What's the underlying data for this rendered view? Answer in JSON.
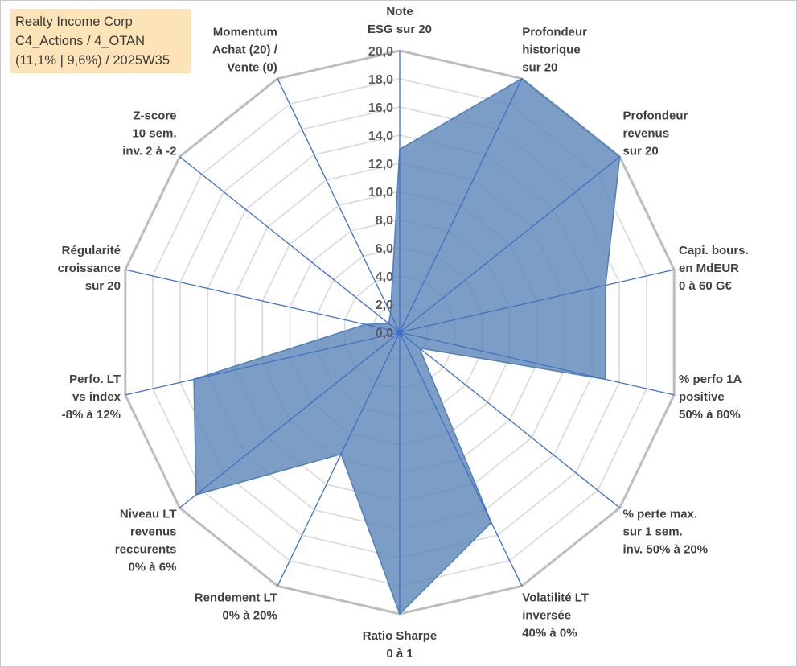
{
  "title": {
    "lines": [
      "Realty Income Corp",
      "C4_Actions / 4_OTAN",
      "(11,1% | 9,6%) / 2025W35"
    ]
  },
  "colors": {
    "fill": "#5b86b8",
    "fill_opacity": 0.8,
    "series_line": "#4f7fb8",
    "spokes": "#3f6fc4",
    "outer_ring": "#bdbdbd",
    "inner_ring": "#d9d9d9",
    "title_bg": "#fde4b8"
  },
  "chart_data": {
    "type": "radar",
    "axes": [
      {
        "lines": [
          "Note",
          "ESG sur 20"
        ],
        "value": 13.0
      },
      {
        "lines": [
          "Profondeur",
          "historique",
          "sur 20"
        ],
        "value": 20.0
      },
      {
        "lines": [
          "Profondeur",
          "revenus",
          "sur 20"
        ],
        "value": 20.0
      },
      {
        "lines": [
          "Capi. bours.",
          "en MdEUR",
          "0 à 60 G€"
        ],
        "value": 15.0
      },
      {
        "lines": [
          "% perfo 1A",
          "positive",
          "50% à 80%"
        ],
        "value": 15.0
      },
      {
        "lines": [
          "% perte max.",
          "sur 1 sem.",
          "inv. 50% à 20%"
        ],
        "value": 1.8
      },
      {
        "lines": [
          "Volatilité LT",
          "inversée",
          "40% à 0%"
        ],
        "value": 15.0
      },
      {
        "lines": [
          "Ratio Sharpe",
          "0 à 1"
        ],
        "value": 20.0
      },
      {
        "lines": [
          "Rendement LT",
          "0% à 20%"
        ],
        "value": 9.6
      },
      {
        "lines": [
          "Niveau LT",
          "revenus",
          "reccurents",
          "0% à 6%"
        ],
        "value": 18.5
      },
      {
        "lines": [
          "Perfo. LT",
          "vs index",
          "-8% à 12%"
        ],
        "value": 15.0
      },
      {
        "lines": [
          "Régularité",
          "croissance",
          "sur 20"
        ],
        "value": 2.5
      },
      {
        "lines": [
          "Z-score",
          "10 sem.",
          "inv. 2 à -2"
        ],
        "value": 1.0
      },
      {
        "lines": [
          "Momentum",
          "Achat (20) /",
          "Vente (0)"
        ],
        "value": 1.5
      }
    ],
    "r_ticks": [
      "0,0",
      "2,0",
      "4,0",
      "6,0",
      "8,0",
      "10,0",
      "12,0",
      "14,0",
      "16,0",
      "18,0",
      "20,0"
    ],
    "rmin": 0,
    "rmax": 20,
    "rstep": 2
  }
}
